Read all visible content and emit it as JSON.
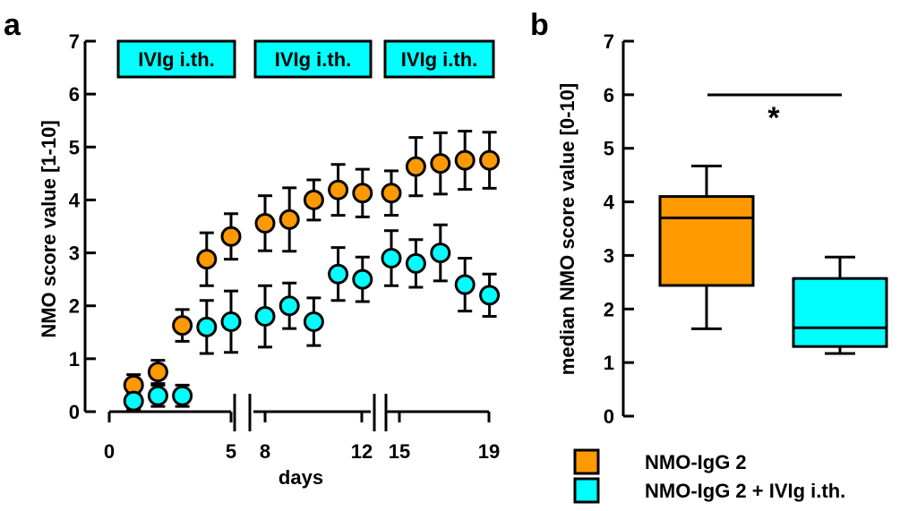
{
  "colors": {
    "orange": "#FF9900",
    "cyan": "#00FFFF",
    "black": "#000000"
  },
  "chart_data": [
    {
      "type": "scatter",
      "panel_label": "a",
      "ylabel": "NMO score value [1-10]",
      "xlabel": "days",
      "ylim": [
        0,
        7
      ],
      "yticks": [
        "0",
        "1",
        "2",
        "3",
        "4",
        "5",
        "6",
        "7"
      ],
      "segments": [
        {
          "range": [
            0,
            5
          ],
          "ticks": [
            "0",
            "5"
          ]
        },
        {
          "range": [
            7.5,
            12
          ],
          "ticks": [
            "8",
            "12"
          ]
        },
        {
          "range": [
            14.5,
            19
          ],
          "ticks": [
            "15",
            "19"
          ]
        }
      ],
      "treatment_labels": [
        "IVIg i.th.",
        "IVIg i.th.",
        "IVIg i.th."
      ],
      "series": [
        {
          "name": "NMO-IgG 2",
          "color": "#FF9900",
          "x": [
            1,
            2,
            3,
            4,
            5,
            8,
            9,
            10,
            11,
            12,
            15,
            16,
            17,
            18,
            19
          ],
          "y": [
            0.5,
            0.75,
            1.63,
            2.88,
            3.31,
            3.56,
            3.63,
            4.0,
            4.19,
            4.13,
            4.13,
            4.63,
            4.69,
            4.75,
            4.75
          ],
          "err": [
            0.2,
            0.22,
            0.3,
            0.5,
            0.43,
            0.52,
            0.6,
            0.38,
            0.48,
            0.45,
            0.42,
            0.55,
            0.58,
            0.55,
            0.53
          ]
        },
        {
          "name": "NMO-IgG 2 + IVIg i.th.",
          "color": "#00FFFF",
          "x": [
            1,
            2,
            3,
            4,
            5,
            8,
            9,
            10,
            11,
            12,
            15,
            16,
            17,
            18,
            19
          ],
          "y": [
            0.2,
            0.3,
            0.3,
            1.6,
            1.7,
            1.8,
            2.0,
            1.7,
            2.6,
            2.5,
            2.9,
            2.8,
            3.0,
            2.4,
            2.2
          ],
          "err": [
            0.15,
            0.2,
            0.2,
            0.5,
            0.58,
            0.58,
            0.43,
            0.45,
            0.5,
            0.42,
            0.52,
            0.45,
            0.53,
            0.5,
            0.4
          ]
        }
      ]
    },
    {
      "type": "box",
      "panel_label": "b",
      "ylabel": "median NMO score value [0-10]",
      "ylim": [
        0,
        7
      ],
      "yticks": [
        "0",
        "1",
        "2",
        "3",
        "4",
        "5",
        "6",
        "7"
      ],
      "significance": "*",
      "boxes": [
        {
          "name": "NMO-IgG 2",
          "color": "#FF9900",
          "min": 1.63,
          "q1": 2.44,
          "median": 3.7,
          "q3": 4.1,
          "max": 4.67
        },
        {
          "name": "NMO-IgG 2 + IVIg i.th.",
          "color": "#00FFFF",
          "min": 1.17,
          "q1": 1.3,
          "median": 1.65,
          "q3": 2.57,
          "max": 2.97
        }
      ]
    }
  ],
  "legend": [
    {
      "label": "NMO-IgG 2",
      "color": "#FF9900"
    },
    {
      "label": "NMO-IgG 2 + IVIg i.th.",
      "color": "#00FFFF"
    }
  ]
}
